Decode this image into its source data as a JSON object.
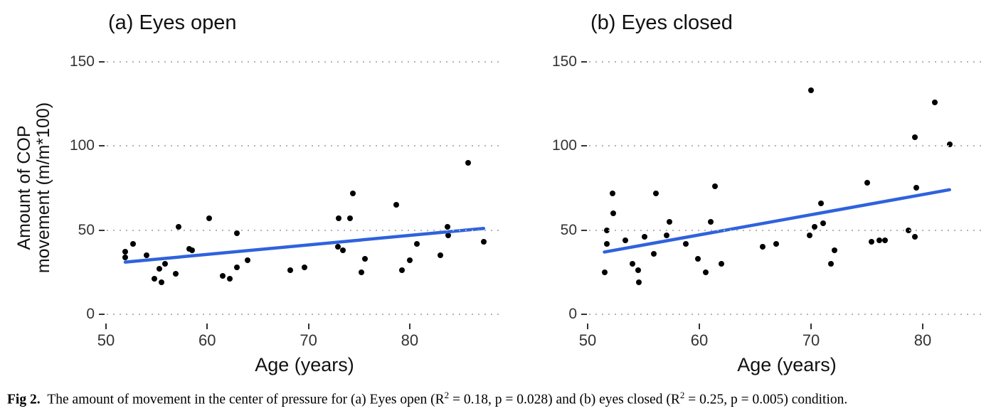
{
  "figure": {
    "caption": {
      "segments": [
        {
          "text": "Fig 2.",
          "bold": true
        },
        {
          "text": " The amount of movement in the center of pressure for (a) Eyes open (R"
        },
        {
          "text": "2",
          "sup": true
        },
        {
          "text": " = 0.18, p = 0.028) and (b) eyes closed (R"
        },
        {
          "text": "2",
          "sup": true
        },
        {
          "text": " = 0.25, p = 0.005) condition."
        }
      ]
    }
  },
  "chart_data": [
    {
      "type": "scatter",
      "title": "(a) Eyes open",
      "xlabel": "Age (years)",
      "ylabel": "Amount of COP movement (m/m*100)",
      "ylabel_lines": [
        "Amount of COP",
        "movement (m/m*100)"
      ],
      "xticks": [
        50,
        60,
        70,
        80
      ],
      "yticks": [
        0,
        50,
        100,
        150
      ],
      "xlim": [
        49.9,
        89.1
      ],
      "ylim": [
        -6,
        155
      ],
      "grid": "dotted-horizontal-major",
      "legend": "none",
      "point_color": "#000000",
      "line_color": "#2f62dd",
      "stats": {
        "r_squared": 0.18,
        "p_value": 0.028
      },
      "points": [
        [
          52.7,
          42
        ],
        [
          51.9,
          37
        ],
        [
          51.9,
          34
        ],
        [
          54.0,
          35
        ],
        [
          55.8,
          30
        ],
        [
          55.3,
          27
        ],
        [
          54.8,
          21
        ],
        [
          56.9,
          24
        ],
        [
          55.5,
          19
        ],
        [
          58.2,
          39
        ],
        [
          58.5,
          38
        ],
        [
          57.2,
          52
        ],
        [
          60.2,
          57
        ],
        [
          62.9,
          48
        ],
        [
          64.0,
          32
        ],
        [
          62.9,
          28
        ],
        [
          61.5,
          23
        ],
        [
          62.2,
          21
        ],
        [
          68.2,
          26
        ],
        [
          69.6,
          28
        ],
        [
          74.4,
          72
        ],
        [
          73.0,
          57
        ],
        [
          74.1,
          57
        ],
        [
          72.9,
          40
        ],
        [
          73.4,
          38
        ],
        [
          75.6,
          33
        ],
        [
          75.2,
          25
        ],
        [
          78.7,
          65
        ],
        [
          79.2,
          26
        ],
        [
          80.0,
          32
        ],
        [
          80.7,
          42
        ],
        [
          83.0,
          35
        ],
        [
          83.7,
          52
        ],
        [
          83.8,
          47
        ],
        [
          85.8,
          90
        ],
        [
          87.3,
          43
        ]
      ],
      "trend": {
        "x1": 51.9,
        "y1": 31,
        "x2": 87.3,
        "y2": 51
      }
    },
    {
      "type": "scatter",
      "title": "(b) Eyes closed",
      "xlabel": "Age (years)",
      "ylabel": "Amount of COP movement (m/m*100)",
      "ylabel_lines": [],
      "xticks": [
        50,
        60,
        70,
        80
      ],
      "yticks": [
        0,
        50,
        100,
        150
      ],
      "xlim": [
        49.9,
        85.6
      ],
      "ylim": [
        -6,
        155
      ],
      "grid": "dotted-horizontal-major",
      "legend": "none",
      "point_color": "#000000",
      "line_color": "#2f62dd",
      "stats": {
        "r_squared": 0.25,
        "p_value": 0.005
      },
      "points": [
        [
          52.2,
          72
        ],
        [
          56.1,
          72
        ],
        [
          52.3,
          60
        ],
        [
          57.3,
          55
        ],
        [
          61.0,
          55
        ],
        [
          51.7,
          50
        ],
        [
          57.1,
          47
        ],
        [
          55.1,
          46
        ],
        [
          53.4,
          44
        ],
        [
          51.7,
          42
        ],
        [
          58.8,
          42
        ],
        [
          55.9,
          36
        ],
        [
          54.0,
          30
        ],
        [
          54.5,
          26
        ],
        [
          51.5,
          25
        ],
        [
          59.9,
          33
        ],
        [
          60.6,
          25
        ],
        [
          54.6,
          19
        ],
        [
          61.4,
          76
        ],
        [
          70.9,
          66
        ],
        [
          71.1,
          54
        ],
        [
          70.3,
          52
        ],
        [
          69.9,
          47
        ],
        [
          66.9,
          42
        ],
        [
          65.7,
          40
        ],
        [
          62.0,
          30
        ],
        [
          72.1,
          38
        ],
        [
          71.8,
          30
        ],
        [
          75.0,
          78
        ],
        [
          79.4,
          75
        ],
        [
          78.7,
          50
        ],
        [
          79.3,
          46
        ],
        [
          75.4,
          43
        ],
        [
          76.1,
          44
        ],
        [
          76.6,
          44
        ],
        [
          70.0,
          133
        ],
        [
          81.1,
          126
        ],
        [
          79.3,
          105
        ],
        [
          82.4,
          101
        ]
      ],
      "trend": {
        "x1": 51.5,
        "y1": 37,
        "x2": 82.4,
        "y2": 74
      }
    }
  ]
}
